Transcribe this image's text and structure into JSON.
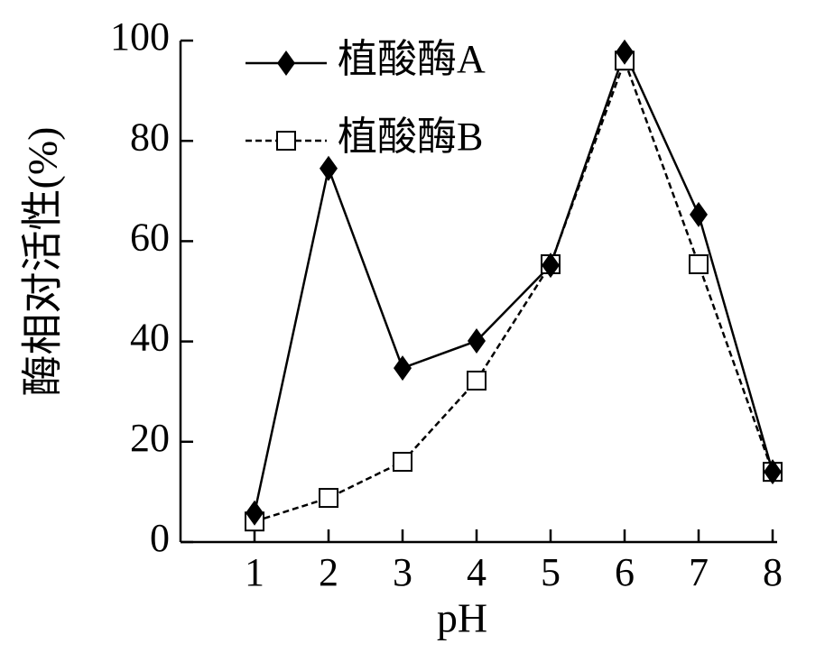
{
  "chart_data": {
    "type": "line",
    "xlabel": "pH",
    "ylabel": "酶相对活性(%)",
    "x": [
      1,
      2,
      3,
      4,
      5,
      6,
      7,
      8
    ],
    "series": [
      {
        "name": "植酸酶A",
        "color": "#000000",
        "marker": "diamond",
        "dashed": false,
        "values": [
          5.8,
          74.5,
          34.7,
          40.1,
          55.2,
          97.7,
          65.3,
          14
        ]
      },
      {
        "name": "植酸酶B",
        "color": "#000000",
        "marker": "open-square",
        "dashed": true,
        "values": [
          4.1,
          8.8,
          16,
          32.2,
          55.4,
          96,
          55.4,
          14
        ]
      }
    ],
    "xlim": [
      0,
      8
    ],
    "ylim": [
      0,
      100
    ],
    "xticks": [
      1,
      2,
      3,
      4,
      5,
      6,
      7,
      8
    ],
    "yticks": [
      0,
      20,
      40,
      60,
      80,
      100
    ],
    "legend": "upper-left",
    "grid": false
  }
}
